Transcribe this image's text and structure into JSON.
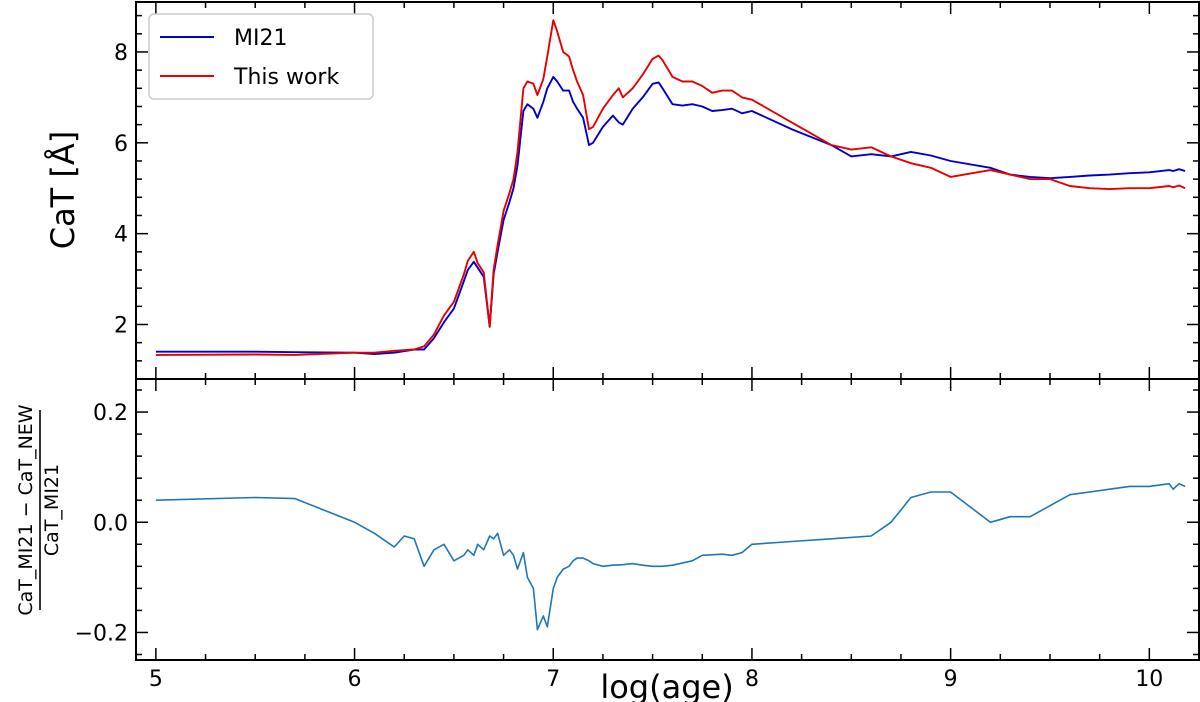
{
  "figure": {
    "xlabel": "log(age)",
    "top_ylabel": "CaT [Å]",
    "bottom_ylabel_numerator": "CaT_MI21 − CaT_NEW",
    "bottom_ylabel_denominator": "CaT_MI21"
  },
  "chart_data": [
    {
      "type": "line",
      "panel": "top",
      "xlabel": "",
      "ylabel": "CaT [Å]",
      "xlim": [
        4.9,
        10.25
      ],
      "ylim": [
        0.8,
        9.1
      ],
      "x_ticks": [
        5,
        6,
        7,
        8,
        9,
        10
      ],
      "x_tick_labels": [
        "",
        "",
        "",
        "",
        "",
        ""
      ],
      "y_ticks": [
        2,
        4,
        6,
        8
      ],
      "y_tick_labels": [
        "2",
        "4",
        "6",
        "8"
      ],
      "grid": false,
      "legend_position": "top-left",
      "series": [
        {
          "name": "MI21",
          "color": "#0000cc",
          "x": [
            5.0,
            5.5,
            5.7,
            6.0,
            6.1,
            6.2,
            6.3,
            6.35,
            6.4,
            6.45,
            6.5,
            6.55,
            6.57,
            6.6,
            6.62,
            6.65,
            6.68,
            6.7,
            6.72,
            6.75,
            6.78,
            6.8,
            6.82,
            6.85,
            6.87,
            6.9,
            6.92,
            6.95,
            6.97,
            7.0,
            7.02,
            7.05,
            7.08,
            7.1,
            7.12,
            7.15,
            7.18,
            7.2,
            7.25,
            7.3,
            7.33,
            7.35,
            7.4,
            7.45,
            7.5,
            7.53,
            7.55,
            7.6,
            7.65,
            7.7,
            7.75,
            7.8,
            7.85,
            7.9,
            7.95,
            8.0,
            8.2,
            8.4,
            8.5,
            8.6,
            8.7,
            8.8,
            8.9,
            9.0,
            9.2,
            9.3,
            9.4,
            9.5,
            9.6,
            9.7,
            9.8,
            9.9,
            10.0,
            10.1,
            10.12,
            10.15,
            10.18
          ],
          "values": [
            1.4,
            1.4,
            1.39,
            1.38,
            1.35,
            1.38,
            1.45,
            1.45,
            1.7,
            2.05,
            2.35,
            2.95,
            3.2,
            3.38,
            3.25,
            3.05,
            1.95,
            3.1,
            3.6,
            4.3,
            4.7,
            5.0,
            5.5,
            6.7,
            6.85,
            6.75,
            6.55,
            6.9,
            7.2,
            7.45,
            7.35,
            7.15,
            7.15,
            6.9,
            6.75,
            6.55,
            5.95,
            6.0,
            6.35,
            6.6,
            6.45,
            6.4,
            6.75,
            7.0,
            7.3,
            7.33,
            7.2,
            6.85,
            6.82,
            6.85,
            6.8,
            6.7,
            6.72,
            6.75,
            6.65,
            6.7,
            6.3,
            5.95,
            5.7,
            5.75,
            5.7,
            5.8,
            5.72,
            5.6,
            5.45,
            5.3,
            5.25,
            5.22,
            5.25,
            5.28,
            5.3,
            5.33,
            5.35,
            5.4,
            5.38,
            5.42,
            5.38
          ]
        },
        {
          "name": "This work",
          "color": "#e80000",
          "x": [
            5.0,
            5.5,
            5.7,
            6.0,
            6.1,
            6.2,
            6.3,
            6.35,
            6.4,
            6.45,
            6.5,
            6.55,
            6.57,
            6.6,
            6.62,
            6.65,
            6.68,
            6.7,
            6.72,
            6.75,
            6.78,
            6.8,
            6.82,
            6.85,
            6.87,
            6.9,
            6.92,
            6.95,
            6.97,
            7.0,
            7.02,
            7.05,
            7.08,
            7.1,
            7.12,
            7.15,
            7.18,
            7.2,
            7.25,
            7.3,
            7.33,
            7.35,
            7.4,
            7.45,
            7.5,
            7.53,
            7.55,
            7.6,
            7.65,
            7.7,
            7.75,
            7.8,
            7.85,
            7.9,
            7.95,
            8.0,
            8.2,
            8.4,
            8.5,
            8.6,
            8.7,
            8.8,
            8.9,
            9.0,
            9.2,
            9.3,
            9.4,
            9.5,
            9.6,
            9.7,
            9.8,
            9.9,
            10.0,
            10.1,
            10.12,
            10.15,
            10.18
          ],
          "values": [
            1.33,
            1.34,
            1.33,
            1.38,
            1.38,
            1.42,
            1.45,
            1.52,
            1.78,
            2.2,
            2.5,
            3.1,
            3.4,
            3.6,
            3.35,
            3.15,
            1.95,
            3.2,
            3.75,
            4.5,
            4.9,
            5.2,
            5.8,
            7.2,
            7.35,
            7.3,
            7.05,
            7.4,
            7.9,
            8.7,
            8.45,
            8.0,
            7.9,
            7.6,
            7.35,
            7.05,
            6.3,
            6.35,
            6.75,
            7.05,
            7.2,
            7.0,
            7.2,
            7.5,
            7.85,
            7.92,
            7.82,
            7.45,
            7.35,
            7.35,
            7.25,
            7.1,
            7.15,
            7.15,
            7.0,
            6.95,
            6.45,
            5.95,
            5.85,
            5.9,
            5.7,
            5.55,
            5.45,
            5.25,
            5.4,
            5.3,
            5.2,
            5.2,
            5.05,
            5.0,
            4.98,
            5.0,
            5.0,
            5.05,
            5.02,
            5.06,
            5.0
          ]
        }
      ]
    },
    {
      "type": "line",
      "panel": "bottom",
      "xlabel": "log(age)",
      "ylabel": "",
      "xlim": [
        4.9,
        10.25
      ],
      "ylim": [
        -0.25,
        0.26
      ],
      "x_ticks": [
        5,
        6,
        7,
        8,
        9,
        10
      ],
      "x_tick_labels": [
        "5",
        "6",
        "7",
        "8",
        "9",
        "10"
      ],
      "y_ticks": [
        -0.2,
        0.0,
        0.2
      ],
      "y_tick_labels": [
        "−0.2",
        "0.0",
        "0.2"
      ],
      "grid": false,
      "series": [
        {
          "color": "#1f77b4",
          "x": [
            5.0,
            5.5,
            5.7,
            6.0,
            6.1,
            6.2,
            6.25,
            6.3,
            6.35,
            6.4,
            6.45,
            6.5,
            6.55,
            6.57,
            6.6,
            6.62,
            6.65,
            6.68,
            6.7,
            6.72,
            6.75,
            6.78,
            6.8,
            6.82,
            6.85,
            6.87,
            6.9,
            6.92,
            6.95,
            6.97,
            7.0,
            7.02,
            7.05,
            7.08,
            7.1,
            7.12,
            7.15,
            7.18,
            7.2,
            7.25,
            7.3,
            7.35,
            7.4,
            7.45,
            7.5,
            7.55,
            7.6,
            7.7,
            7.75,
            7.85,
            7.9,
            7.95,
            8.0,
            8.2,
            8.4,
            8.6,
            8.7,
            8.8,
            8.9,
            9.0,
            9.2,
            9.3,
            9.4,
            9.5,
            9.6,
            9.7,
            9.8,
            9.9,
            10.0,
            10.1,
            10.12,
            10.15,
            10.18
          ],
          "values": [
            0.04,
            0.045,
            0.043,
            0.0,
            -0.02,
            -0.045,
            -0.025,
            -0.03,
            -0.08,
            -0.05,
            -0.04,
            -0.07,
            -0.06,
            -0.05,
            -0.06,
            -0.04,
            -0.05,
            -0.025,
            -0.03,
            -0.02,
            -0.06,
            -0.05,
            -0.06,
            -0.085,
            -0.055,
            -0.1,
            -0.12,
            -0.195,
            -0.17,
            -0.19,
            -0.12,
            -0.1,
            -0.085,
            -0.08,
            -0.07,
            -0.065,
            -0.065,
            -0.07,
            -0.075,
            -0.08,
            -0.078,
            -0.077,
            -0.075,
            -0.078,
            -0.08,
            -0.08,
            -0.078,
            -0.07,
            -0.06,
            -0.058,
            -0.06,
            -0.055,
            -0.04,
            -0.035,
            -0.03,
            -0.025,
            0.0,
            0.045,
            0.055,
            0.055,
            0.0,
            0.01,
            0.01,
            0.03,
            0.05,
            0.055,
            0.06,
            0.065,
            0.065,
            0.07,
            0.06,
            0.07,
            0.065
          ]
        }
      ]
    }
  ]
}
